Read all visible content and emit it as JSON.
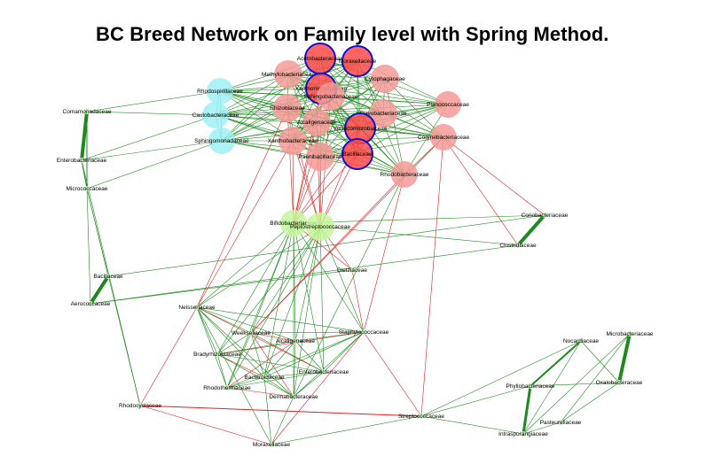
{
  "title": "BC Breed Network on Family level with Spring Method.",
  "colors": {
    "positive_edge": "#1e8a1e",
    "negative_edge": "#e02020",
    "node_red": "#ff4a4a",
    "node_salmon": "#f59a96",
    "node_cyan": "#9ff0f4",
    "node_lime": "#c6f79a",
    "node_small": "#c8f0c0",
    "highlight_border": "#1010d0"
  },
  "nodes": [
    {
      "id": "acetobacteraceae",
      "label": "Acetobacteraceae",
      "color": "node_red",
      "highlight": true
    },
    {
      "id": "moraxellaceae_top",
      "label": "Moraxellaceae",
      "color": "node_red",
      "highlight": true
    },
    {
      "id": "methylobacteriaceae",
      "label": "Methylobacteriaceae",
      "color": "node_salmon"
    },
    {
      "id": "cytophagaceae",
      "label": "Cytophagaceae",
      "color": "node_salmon"
    },
    {
      "id": "xanthomonadaceae",
      "label": "Xanthomonadaceae",
      "color": "node_red",
      "highlight": true
    },
    {
      "id": "sphingobacteriaceae",
      "label": "Sphingobacteriaceae",
      "color": "node_salmon"
    },
    {
      "id": "rhodospirillaceae",
      "label": "Rhodospirillaceae",
      "color": "node_cyan"
    },
    {
      "id": "rhizobiaceae",
      "label": "Rhizobiaceae",
      "color": "node_salmon"
    },
    {
      "id": "caulobacteraceae",
      "label": "Caulobacteraceae",
      "color": "node_cyan"
    },
    {
      "id": "comamonadaceae",
      "label": "Comamonadaceae",
      "color": "node_small"
    },
    {
      "id": "planococcaceae",
      "label": "Planococcaceae",
      "color": "node_salmon"
    },
    {
      "id": "flavobacteriaceae",
      "label": "Flavobacteriaceae",
      "color": "node_salmon"
    },
    {
      "id": "alcaligenaceae",
      "label": "Alcaligenaceae",
      "color": "node_salmon"
    },
    {
      "id": "verrucomicrobiaceae",
      "label": "Verrucomicrobiaceae",
      "color": "node_red",
      "highlight": true
    },
    {
      "id": "sphingomonadaceae",
      "label": "Sphingomonadaceae",
      "color": "node_cyan"
    },
    {
      "id": "xanthobacteraceae",
      "label": "Xanthobacteraceae",
      "color": "node_salmon"
    },
    {
      "id": "corynebacteriaceae",
      "label": "Corynebacteriaceae",
      "color": "node_salmon"
    },
    {
      "id": "paenibacillaceae",
      "label": "Paenibacillaceae",
      "color": "node_salmon"
    },
    {
      "id": "bacillaceae_top",
      "label": "Bacillaceae",
      "color": "node_red",
      "highlight": true
    },
    {
      "id": "enterobacteriaceae",
      "label": "Enterobacteriaceae",
      "color": "node_small"
    },
    {
      "id": "rhodobacteraceae",
      "label": "Rhodobacteraceae",
      "color": "node_salmon"
    },
    {
      "id": "micrococcaceae",
      "label": "Micrococcaceae",
      "color": "node_small"
    },
    {
      "id": "coriobacteriaceae",
      "label": "Coriobacteriaceae",
      "color": "node_small"
    },
    {
      "id": "bifidobacteriaceae",
      "label": "Bifidobacteriaceae",
      "color": "node_lime"
    },
    {
      "id": "peptostreptococcaceae",
      "label": "Peptostreptococcaceae",
      "color": "node_lime"
    },
    {
      "id": "clostridiaceae",
      "label": "Clostridiaceae",
      "color": "node_small"
    },
    {
      "id": "dietziaceae",
      "label": "Dietziaceae",
      "color": "node_small"
    },
    {
      "id": "bacillaceae",
      "label": "Bacillaceae",
      "color": "node_small"
    },
    {
      "id": "aerococcaceae",
      "label": "Aerococcaceae",
      "color": "node_small"
    },
    {
      "id": "neisseriaceae",
      "label": "Neisseriaceae",
      "color": "node_small"
    },
    {
      "id": "staphylococcaceae",
      "label": "Staphylococcaceae",
      "color": "node_small"
    },
    {
      "id": "weeksellaceae",
      "label": "Weeksellaceae",
      "color": "node_small"
    },
    {
      "id": "alcaligenaceae_b",
      "label": "Alcaligenaceae",
      "color": "node_small"
    },
    {
      "id": "bradyrhizobiaceae",
      "label": "Bradyrhizobiaceae",
      "color": "node_small"
    },
    {
      "id": "nocardiaceae",
      "label": "Nocardiaceae",
      "color": "node_small"
    },
    {
      "id": "microbacteriaceae",
      "label": "Microbacteriaceae",
      "color": "node_small"
    },
    {
      "id": "enterobacteriaceae_b",
      "label": "Enterobacteriaceae",
      "color": "node_small"
    },
    {
      "id": "bacteroidaceae",
      "label": "Bacteroidaceae",
      "color": "node_small"
    },
    {
      "id": "oxalobacteraceae",
      "label": "Oxalobacteraceae",
      "color": "node_small"
    },
    {
      "id": "rhodotermaceae",
      "label": "Rhodothermaceae",
      "color": "node_small"
    },
    {
      "id": "dermabacteraceae",
      "label": "Dermabacteraceae",
      "color": "node_small"
    },
    {
      "id": "phyllobacteriaceae",
      "label": "Phyllobacteriaceae",
      "color": "node_small"
    },
    {
      "id": "rhodocyclaceae",
      "label": "Rhodocyclaceae",
      "color": "node_small"
    },
    {
      "id": "streptococcaceae",
      "label": "Streptococcaceae",
      "color": "node_small"
    },
    {
      "id": "pasteurellaceae",
      "label": "Pasteurellaceae",
      "color": "node_small"
    },
    {
      "id": "intrasporangiaceae",
      "label": "Intrasporangiaceae",
      "color": "node_small"
    },
    {
      "id": "moraxellaceae",
      "label": "Moraxellaceae",
      "color": "node_small"
    }
  ]
}
